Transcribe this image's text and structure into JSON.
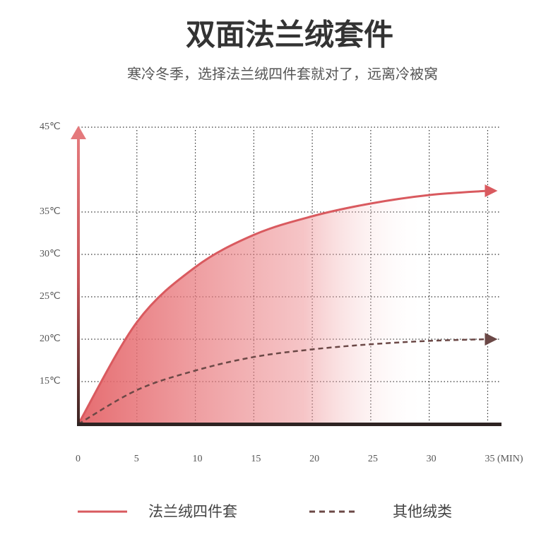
{
  "chart_data": {
    "type": "line",
    "title": "双面法兰绒套件",
    "subtitle": "寒冷冬季，选择法兰绒四件套就对了，远离冷被窝",
    "x": [
      0,
      5,
      10,
      15,
      20,
      25,
      30,
      35
    ],
    "series": [
      {
        "name": "法兰绒四件套",
        "color": "#d95a5f",
        "style": "solid",
        "values": [
          10,
          22,
          28.5,
          32.3,
          34.5,
          36,
          37,
          37.5
        ]
      },
      {
        "name": "其他绒类",
        "color": "#6b4846",
        "style": "dashed",
        "values": [
          10,
          14,
          16.3,
          17.9,
          18.8,
          19.4,
          19.8,
          20
        ]
      }
    ],
    "xlim": [
      0,
      36
    ],
    "xticks": [
      0,
      5,
      10,
      15,
      20,
      25,
      30,
      {
        "value": 35,
        "label": "35 (MIN)"
      }
    ],
    "ylim": [
      10,
      44
    ],
    "yticks": [
      {
        "value": 15,
        "label": "15℃"
      },
      {
        "value": 20,
        "label": "20℃"
      },
      {
        "value": 25,
        "label": "25℃"
      },
      {
        "value": 30,
        "label": "30℃"
      },
      {
        "value": 35,
        "label": "35℃"
      },
      {
        "value": 45,
        "label": "45℃"
      }
    ],
    "grid": true
  }
}
